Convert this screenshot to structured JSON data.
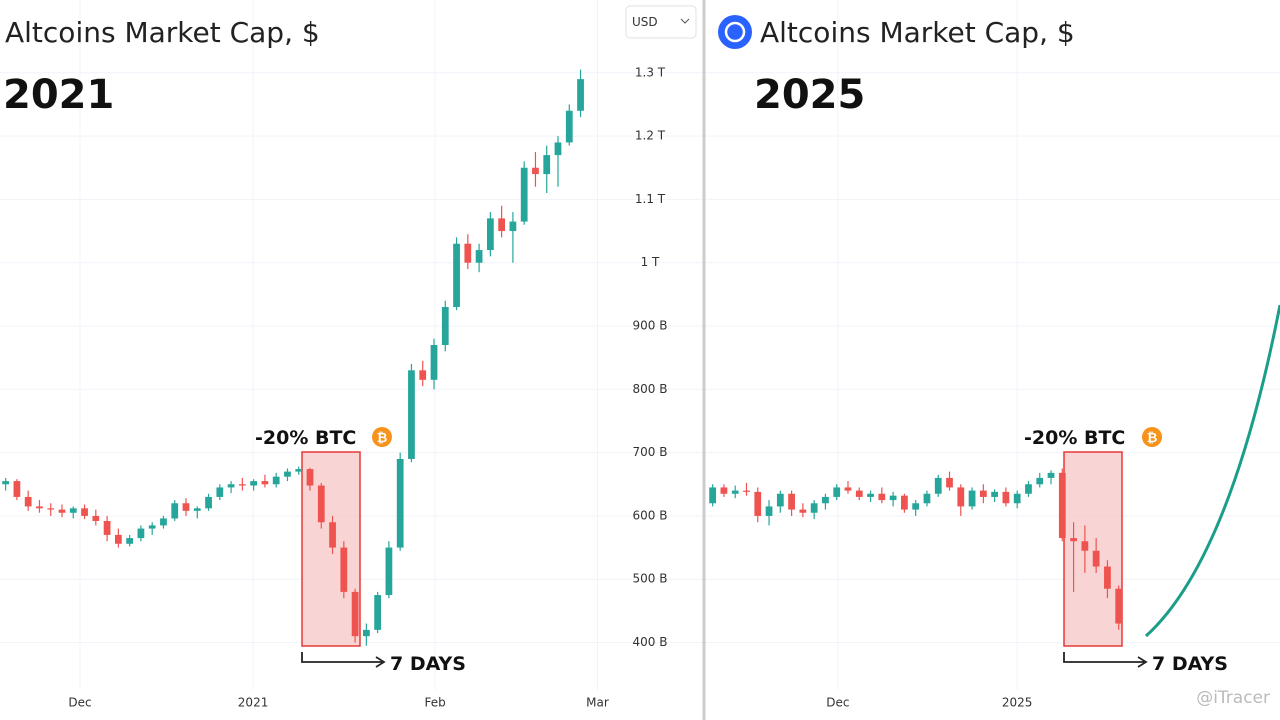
{
  "currency": "USD",
  "watermark": "@iTracer",
  "chart_data": [
    {
      "type": "candlestick",
      "title": "Altcoins Market Cap, $",
      "label": "2021",
      "annotations": [
        "-20% BTC",
        "7 DAYS"
      ],
      "up_color": "#26a69a",
      "down_color": "#ef5350",
      "grid": true,
      "xlim": [
        -0.5,
        54.5
      ],
      "ylim": [
        325,
        1415
      ],
      "xticks": [
        {
          "value": 6.6,
          "label": "Dec"
        },
        {
          "value": 21.95,
          "label": "2021"
        },
        {
          "value": 38.1,
          "label": "Feb"
        },
        {
          "value": 52.5,
          "label": "Mar"
        }
      ],
      "yticks": [
        {
          "value": 400,
          "label": "400 B"
        },
        {
          "value": 500,
          "label": "500 B"
        },
        {
          "value": 600,
          "label": "600 B"
        },
        {
          "value": 700,
          "label": "700 B"
        },
        {
          "value": 800,
          "label": "800 B"
        },
        {
          "value": 900,
          "label": "900 B"
        },
        {
          "value": 1000,
          "label": "1 T"
        },
        {
          "value": 1100,
          "label": "1.1 T"
        },
        {
          "value": 1200,
          "label": "1.2 T"
        },
        {
          "value": 1300,
          "label": "1.3 T"
        }
      ],
      "candles": [
        [
          650,
          660,
          640,
          655
        ],
        [
          655,
          658,
          625,
          630
        ],
        [
          630,
          640,
          608,
          615
        ],
        [
          615,
          625,
          605,
          612
        ],
        [
          612,
          620,
          600,
          610
        ],
        [
          610,
          618,
          598,
          605
        ],
        [
          605,
          615,
          596,
          612
        ],
        [
          612,
          618,
          595,
          600
        ],
        [
          600,
          610,
          585,
          592
        ],
        [
          592,
          600,
          560,
          570
        ],
        [
          570,
          580,
          550,
          556
        ],
        [
          556,
          570,
          552,
          565
        ],
        [
          565,
          585,
          560,
          580
        ],
        [
          580,
          590,
          570,
          585
        ],
        [
          585,
          600,
          580,
          596
        ],
        [
          596,
          625,
          592,
          620
        ],
        [
          620,
          628,
          600,
          608
        ],
        [
          608,
          615,
          596,
          612
        ],
        [
          612,
          635,
          608,
          630
        ],
        [
          630,
          650,
          625,
          645
        ],
        [
          645,
          655,
          636,
          650
        ],
        [
          650,
          660,
          640,
          648
        ],
        [
          648,
          658,
          640,
          655
        ],
        [
          655,
          665,
          645,
          650
        ],
        [
          650,
          668,
          645,
          662
        ],
        [
          662,
          675,
          655,
          670
        ],
        [
          670,
          678,
          665,
          674
        ],
        [
          674,
          676,
          640,
          648
        ],
        [
          648,
          652,
          580,
          590
        ],
        [
          590,
          600,
          540,
          550
        ],
        [
          550,
          560,
          470,
          480
        ],
        [
          480,
          485,
          400,
          410
        ],
        [
          410,
          430,
          395,
          420
        ],
        [
          420,
          480,
          415,
          475
        ],
        [
          475,
          560,
          470,
          550
        ],
        [
          550,
          700,
          545,
          690
        ],
        [
          690,
          840,
          685,
          830
        ],
        [
          830,
          845,
          805,
          815
        ],
        [
          815,
          880,
          800,
          870
        ],
        [
          870,
          940,
          860,
          930
        ],
        [
          930,
          1040,
          925,
          1030
        ],
        [
          1030,
          1045,
          990,
          1000
        ],
        [
          1000,
          1030,
          985,
          1020
        ],
        [
          1020,
          1080,
          1010,
          1070
        ],
        [
          1070,
          1090,
          1040,
          1050
        ],
        [
          1050,
          1080,
          1000,
          1065
        ],
        [
          1065,
          1160,
          1060,
          1150
        ],
        [
          1150,
          1175,
          1120,
          1140
        ],
        [
          1140,
          1185,
          1110,
          1170
        ],
        [
          1170,
          1200,
          1120,
          1190
        ],
        [
          1190,
          1250,
          1185,
          1240
        ],
        [
          1240,
          1305,
          1230,
          1290
        ]
      ]
    },
    {
      "type": "candlestick",
      "title": "Altcoins Market Cap, $",
      "label": "2025",
      "annotations": [
        "-20% BTC",
        "7 DAYS"
      ],
      "up_color": "#26a69a",
      "down_color": "#ef5350",
      "grid": true,
      "xlim": [
        -0.5,
        50.3
      ],
      "ylim": [
        325,
        1415
      ],
      "xticks": [
        {
          "value": 11.1,
          "label": "Dec"
        },
        {
          "value": 27.0,
          "label": "2025"
        }
      ],
      "candles": [
        [
          620,
          650,
          615,
          645
        ],
        [
          645,
          650,
          630,
          635
        ],
        [
          635,
          648,
          628,
          640
        ],
        [
          640,
          652,
          632,
          638
        ],
        [
          638,
          645,
          590,
          600
        ],
        [
          600,
          625,
          585,
          615
        ],
        [
          615,
          640,
          605,
          635
        ],
        [
          635,
          640,
          600,
          610
        ],
        [
          610,
          620,
          598,
          605
        ],
        [
          605,
          625,
          595,
          620
        ],
        [
          620,
          635,
          610,
          630
        ],
        [
          630,
          650,
          625,
          645
        ],
        [
          645,
          655,
          635,
          640
        ],
        [
          640,
          645,
          625,
          630
        ],
        [
          630,
          640,
          622,
          635
        ],
        [
          635,
          645,
          620,
          625
        ],
        [
          625,
          638,
          615,
          632
        ],
        [
          632,
          635,
          605,
          610
        ],
        [
          610,
          625,
          600,
          620
        ],
        [
          620,
          640,
          615,
          635
        ],
        [
          635,
          665,
          630,
          660
        ],
        [
          660,
          670,
          640,
          645
        ],
        [
          645,
          650,
          600,
          615
        ],
        [
          615,
          645,
          610,
          640
        ],
        [
          640,
          650,
          620,
          630
        ],
        [
          630,
          642,
          622,
          638
        ],
        [
          638,
          645,
          615,
          620
        ],
        [
          620,
          640,
          612,
          635
        ],
        [
          635,
          655,
          630,
          650
        ],
        [
          650,
          668,
          645,
          660
        ],
        [
          660,
          672,
          650,
          668
        ],
        [
          668,
          675,
          560,
          565
        ],
        [
          565,
          590,
          480,
          560
        ],
        [
          560,
          585,
          510,
          545
        ],
        [
          545,
          565,
          510,
          520
        ],
        [
          520,
          530,
          470,
          485
        ],
        [
          485,
          490,
          420,
          430
        ]
      ]
    }
  ]
}
